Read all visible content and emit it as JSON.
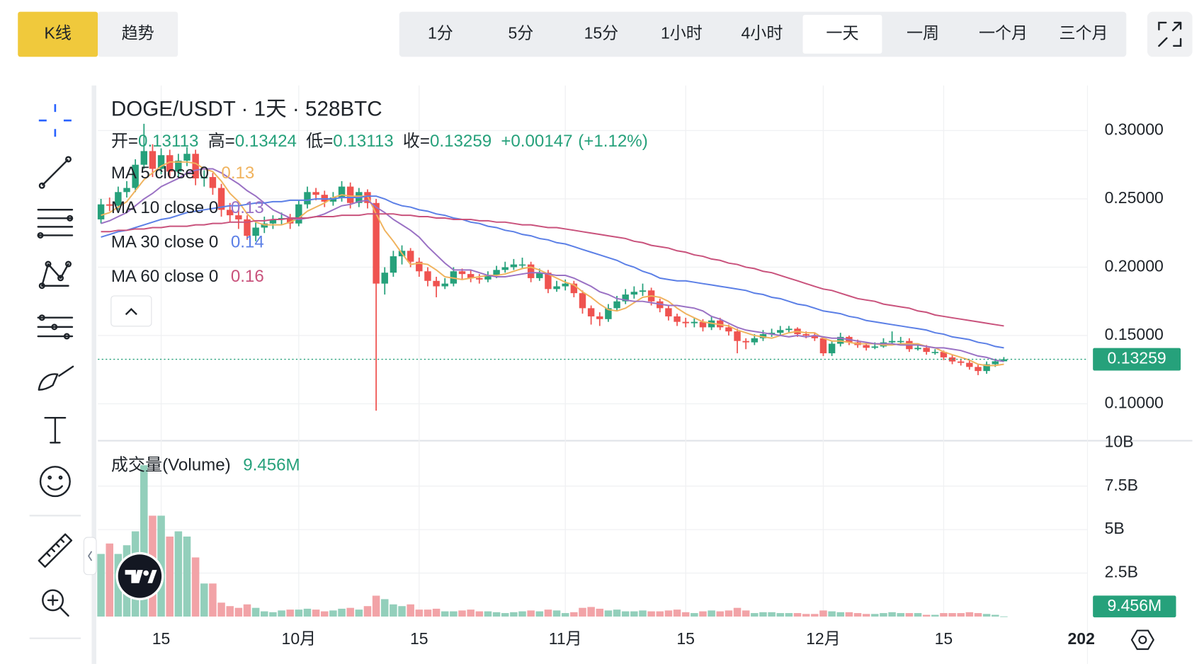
{
  "toolbar": {
    "modes": [
      "K线",
      "趋势"
    ],
    "active_mode": 0,
    "intervals": [
      "1分",
      "5分",
      "15分",
      "1小时",
      "4小时",
      "一天",
      "一周",
      "一个月",
      "三个月"
    ],
    "active_interval": 5
  },
  "chart_data": {
    "type": "candlestick",
    "title": "DOGE/USDT · 1天 · 528BTC",
    "ohlc_labels": [
      "开=",
      "高=",
      "低=",
      "收="
    ],
    "change_label": "+0.00147",
    "change_pct_label": "(+1.12%)",
    "up_color": "#26a17b",
    "down_color": "#ef5350",
    "x": [
      "09-08",
      "09-09",
      "09-10",
      "09-11",
      "09-12",
      "09-13",
      "09-14",
      "09-15",
      "09-16",
      "09-17",
      "09-18",
      "09-19",
      "09-20",
      "09-21",
      "09-22",
      "09-23",
      "09-24",
      "09-25",
      "09-26",
      "09-27",
      "09-28",
      "09-29",
      "09-30",
      "10-01",
      "10-02",
      "10-03",
      "10-04",
      "10-05",
      "10-06",
      "10-07",
      "10-08",
      "10-09",
      "10-10",
      "10-11",
      "10-12",
      "10-13",
      "10-14",
      "10-15",
      "10-16",
      "10-17",
      "10-18",
      "10-19",
      "10-20",
      "10-21",
      "10-22",
      "10-23",
      "10-24",
      "10-25",
      "10-26",
      "10-27",
      "10-28",
      "10-29",
      "10-30",
      "10-31",
      "11-01",
      "11-02",
      "11-03",
      "11-04",
      "11-05",
      "11-06",
      "11-07",
      "11-08",
      "11-09",
      "11-10",
      "11-11",
      "11-12",
      "11-13",
      "11-14",
      "11-15",
      "11-16",
      "11-17",
      "11-18",
      "11-19",
      "11-20",
      "11-21",
      "11-22",
      "11-23",
      "11-24",
      "11-25",
      "11-26",
      "11-27",
      "11-28",
      "11-29",
      "11-30",
      "12-01",
      "12-02",
      "12-03",
      "12-04",
      "12-05",
      "12-06",
      "12-07",
      "12-08",
      "12-09",
      "12-10",
      "12-11",
      "12-12",
      "12-13",
      "12-14",
      "12-15",
      "12-16",
      "12-17",
      "12-18",
      "12-19",
      "12-20",
      "12-21",
      "12-22"
    ],
    "open": [
      0.235,
      0.246,
      0.245,
      0.255,
      0.258,
      0.275,
      0.285,
      0.272,
      0.282,
      0.27,
      0.278,
      0.283,
      0.265,
      0.266,
      0.258,
      0.242,
      0.238,
      0.235,
      0.223,
      0.229,
      0.232,
      0.235,
      0.236,
      0.232,
      0.246,
      0.255,
      0.253,
      0.248,
      0.251,
      0.259,
      0.247,
      0.255,
      0.247,
      0.188,
      0.196,
      0.208,
      0.212,
      0.204,
      0.197,
      0.19,
      0.186,
      0.188,
      0.197,
      0.195,
      0.192,
      0.191,
      0.194,
      0.198,
      0.2,
      0.202,
      0.202,
      0.192,
      0.196,
      0.184,
      0.186,
      0.188,
      0.181,
      0.17,
      0.164,
      0.162,
      0.17,
      0.175,
      0.18,
      0.182,
      0.183,
      0.175,
      0.17,
      0.164,
      0.16,
      0.159,
      0.16,
      0.156,
      0.161,
      0.156,
      0.153,
      0.146,
      0.145,
      0.148,
      0.151,
      0.152,
      0.154,
      0.155,
      0.151,
      0.15,
      0.148,
      0.137,
      0.144,
      0.149,
      0.145,
      0.143,
      0.141,
      0.142,
      0.145,
      0.146,
      0.146,
      0.14,
      0.141,
      0.138,
      0.138,
      0.134,
      0.131,
      0.13,
      0.127,
      0.124,
      0.129,
      0.13113
    ],
    "high": [
      0.25,
      0.251,
      0.259,
      0.263,
      0.279,
      0.305,
      0.29,
      0.287,
      0.286,
      0.283,
      0.288,
      0.286,
      0.271,
      0.269,
      0.261,
      0.247,
      0.242,
      0.238,
      0.233,
      0.237,
      0.238,
      0.24,
      0.239,
      0.249,
      0.259,
      0.258,
      0.256,
      0.255,
      0.263,
      0.262,
      0.258,
      0.257,
      0.25,
      0.2,
      0.212,
      0.216,
      0.214,
      0.207,
      0.2,
      0.193,
      0.192,
      0.2,
      0.199,
      0.198,
      0.195,
      0.197,
      0.201,
      0.204,
      0.206,
      0.207,
      0.204,
      0.199,
      0.198,
      0.19,
      0.191,
      0.19,
      0.183,
      0.172,
      0.167,
      0.173,
      0.179,
      0.184,
      0.186,
      0.188,
      0.185,
      0.177,
      0.172,
      0.166,
      0.163,
      0.163,
      0.162,
      0.164,
      0.163,
      0.158,
      0.155,
      0.148,
      0.151,
      0.154,
      0.155,
      0.157,
      0.157,
      0.156,
      0.153,
      0.152,
      0.149,
      0.146,
      0.152,
      0.15,
      0.147,
      0.145,
      0.145,
      0.148,
      0.153,
      0.149,
      0.148,
      0.143,
      0.143,
      0.14,
      0.139,
      0.136,
      0.133,
      0.132,
      0.129,
      0.131,
      0.133,
      0.13424
    ],
    "low": [
      0.232,
      0.241,
      0.242,
      0.251,
      0.255,
      0.272,
      0.266,
      0.268,
      0.265,
      0.266,
      0.274,
      0.26,
      0.259,
      0.253,
      0.237,
      0.233,
      0.228,
      0.22,
      0.219,
      0.225,
      0.228,
      0.231,
      0.228,
      0.23,
      0.243,
      0.249,
      0.244,
      0.245,
      0.248,
      0.243,
      0.244,
      0.243,
      0.095,
      0.18,
      0.193,
      0.202,
      0.2,
      0.193,
      0.186,
      0.178,
      0.184,
      0.186,
      0.191,
      0.189,
      0.188,
      0.189,
      0.192,
      0.196,
      0.198,
      0.199,
      0.189,
      0.19,
      0.181,
      0.182,
      0.183,
      0.178,
      0.166,
      0.158,
      0.157,
      0.16,
      0.168,
      0.173,
      0.177,
      0.179,
      0.172,
      0.167,
      0.161,
      0.157,
      0.156,
      0.156,
      0.153,
      0.154,
      0.154,
      0.15,
      0.137,
      0.14,
      0.143,
      0.146,
      0.149,
      0.15,
      0.152,
      0.149,
      0.148,
      0.146,
      0.135,
      0.135,
      0.142,
      0.143,
      0.141,
      0.139,
      0.14,
      0.141,
      0.143,
      0.144,
      0.138,
      0.139,
      0.136,
      0.136,
      0.132,
      0.129,
      0.128,
      0.125,
      0.121,
      0.122,
      0.127,
      0.13113
    ],
    "close": [
      0.246,
      0.245,
      0.255,
      0.258,
      0.275,
      0.285,
      0.272,
      0.282,
      0.27,
      0.278,
      0.283,
      0.265,
      0.266,
      0.258,
      0.242,
      0.238,
      0.235,
      0.223,
      0.229,
      0.232,
      0.235,
      0.236,
      0.232,
      0.246,
      0.255,
      0.253,
      0.248,
      0.251,
      0.259,
      0.247,
      0.255,
      0.247,
      0.188,
      0.196,
      0.208,
      0.212,
      0.204,
      0.197,
      0.19,
      0.186,
      0.188,
      0.197,
      0.195,
      0.192,
      0.191,
      0.194,
      0.198,
      0.2,
      0.202,
      0.202,
      0.192,
      0.196,
      0.184,
      0.186,
      0.188,
      0.181,
      0.17,
      0.164,
      0.162,
      0.17,
      0.175,
      0.18,
      0.182,
      0.183,
      0.175,
      0.17,
      0.164,
      0.16,
      0.159,
      0.16,
      0.156,
      0.161,
      0.156,
      0.153,
      0.146,
      0.145,
      0.148,
      0.151,
      0.152,
      0.154,
      0.155,
      0.151,
      0.15,
      0.148,
      0.137,
      0.144,
      0.149,
      0.145,
      0.143,
      0.141,
      0.142,
      0.145,
      0.146,
      0.146,
      0.14,
      0.141,
      0.138,
      0.138,
      0.134,
      0.131,
      0.13,
      0.127,
      0.124,
      0.129,
      0.13113,
      0.13259
    ],
    "ylim": [
      0.0733,
      0.333
    ],
    "yticks": [
      {
        "value": 0.3,
        "label": "0.30000"
      },
      {
        "value": 0.25,
        "label": "0.25000"
      },
      {
        "value": 0.2,
        "label": "0.20000"
      },
      {
        "value": 0.15,
        "label": "0.15000"
      },
      {
        "value": 0.1,
        "label": "0.10000"
      }
    ],
    "xticks": [
      {
        "value": "09-15",
        "label": "15"
      },
      {
        "value": "10-01",
        "label": "10月"
      },
      {
        "value": "10-15",
        "label": "15"
      },
      {
        "value": "11-01",
        "label": "11月"
      },
      {
        "value": "11-15",
        "label": "15"
      },
      {
        "value": "12-01",
        "label": "12月"
      },
      {
        "value": "12-15",
        "label": "15"
      },
      {
        "value": "01-01",
        "label": "202"
      }
    ],
    "grid": true,
    "moving_averages": [
      {
        "name": "MA 5 close 0",
        "color": "#f0b35e",
        "value_label": "0.13",
        "values": [
          0.238,
          0.24,
          0.244,
          0.248,
          0.256,
          0.264,
          0.269,
          0.274,
          0.277,
          0.277,
          0.277,
          0.276,
          0.272,
          0.27,
          0.263,
          0.254,
          0.248,
          0.239,
          0.233,
          0.231,
          0.231,
          0.231,
          0.233,
          0.236,
          0.241,
          0.244,
          0.247,
          0.251,
          0.253,
          0.252,
          0.252,
          0.252,
          0.239,
          0.227,
          0.219,
          0.21,
          0.202,
          0.203,
          0.202,
          0.198,
          0.193,
          0.192,
          0.191,
          0.192,
          0.193,
          0.194,
          0.194,
          0.195,
          0.197,
          0.199,
          0.2,
          0.198,
          0.195,
          0.192,
          0.189,
          0.187,
          0.182,
          0.178,
          0.173,
          0.169,
          0.168,
          0.17,
          0.174,
          0.178,
          0.179,
          0.178,
          0.175,
          0.17,
          0.166,
          0.163,
          0.16,
          0.159,
          0.158,
          0.157,
          0.154,
          0.152,
          0.15,
          0.149,
          0.148,
          0.15,
          0.152,
          0.153,
          0.152,
          0.152,
          0.148,
          0.146,
          0.146,
          0.145,
          0.144,
          0.144,
          0.144,
          0.143,
          0.143,
          0.144,
          0.144,
          0.144,
          0.142,
          0.141,
          0.138,
          0.136,
          0.134,
          0.132,
          0.129,
          0.128,
          0.128,
          0.129
        ]
      },
      {
        "name": "MA 10 close 0",
        "color": "#9a71c4",
        "value_label": "0.13",
        "values": [
          0.232,
          0.234,
          0.237,
          0.24,
          0.245,
          0.25,
          0.254,
          0.259,
          0.262,
          0.265,
          0.269,
          0.271,
          0.272,
          0.272,
          0.269,
          0.265,
          0.261,
          0.256,
          0.252,
          0.247,
          0.242,
          0.239,
          0.236,
          0.235,
          0.236,
          0.237,
          0.239,
          0.242,
          0.245,
          0.246,
          0.248,
          0.249,
          0.244,
          0.24,
          0.235,
          0.231,
          0.227,
          0.222,
          0.215,
          0.209,
          0.203,
          0.198,
          0.198,
          0.198,
          0.196,
          0.194,
          0.193,
          0.193,
          0.194,
          0.195,
          0.196,
          0.196,
          0.195,
          0.194,
          0.194,
          0.192,
          0.189,
          0.186,
          0.182,
          0.18,
          0.177,
          0.176,
          0.175,
          0.175,
          0.174,
          0.173,
          0.172,
          0.172,
          0.171,
          0.17,
          0.168,
          0.164,
          0.162,
          0.159,
          0.156,
          0.154,
          0.153,
          0.152,
          0.151,
          0.15,
          0.149,
          0.15,
          0.149,
          0.15,
          0.149,
          0.148,
          0.148,
          0.147,
          0.146,
          0.145,
          0.144,
          0.144,
          0.144,
          0.143,
          0.143,
          0.143,
          0.142,
          0.141,
          0.141,
          0.14,
          0.139,
          0.137,
          0.135,
          0.134,
          0.132,
          0.131
        ]
      },
      {
        "name": "MA 30 close 0",
        "color": "#5b7fe6",
        "value_label": "0.14",
        "values": [
          0.222,
          0.224,
          0.226,
          0.227,
          0.229,
          0.231,
          0.233,
          0.235,
          0.236,
          0.238,
          0.24,
          0.241,
          0.242,
          0.243,
          0.244,
          0.245,
          0.245,
          0.246,
          0.247,
          0.247,
          0.248,
          0.248,
          0.249,
          0.249,
          0.249,
          0.25,
          0.25,
          0.25,
          0.251,
          0.251,
          0.251,
          0.252,
          0.252,
          0.25,
          0.247,
          0.245,
          0.244,
          0.242,
          0.241,
          0.239,
          0.238,
          0.236,
          0.235,
          0.233,
          0.232,
          0.23,
          0.229,
          0.227,
          0.226,
          0.224,
          0.223,
          0.221,
          0.22,
          0.218,
          0.217,
          0.215,
          0.213,
          0.211,
          0.209,
          0.207,
          0.205,
          0.202,
          0.2,
          0.197,
          0.195,
          0.192,
          0.191,
          0.19,
          0.19,
          0.189,
          0.188,
          0.187,
          0.186,
          0.185,
          0.184,
          0.183,
          0.181,
          0.18,
          0.178,
          0.177,
          0.175,
          0.173,
          0.172,
          0.17,
          0.168,
          0.167,
          0.166,
          0.164,
          0.163,
          0.161,
          0.16,
          0.159,
          0.158,
          0.157,
          0.156,
          0.155,
          0.154,
          0.152,
          0.151,
          0.149,
          0.148,
          0.147,
          0.145,
          0.144,
          0.142,
          0.141
        ]
      },
      {
        "name": "MA 60 close 0",
        "color": "#c9527c",
        "value_label": "0.16",
        "values": [
          0.226,
          0.226,
          0.227,
          0.227,
          0.228,
          0.228,
          0.229,
          0.229,
          0.23,
          0.23,
          0.23,
          0.231,
          0.231,
          0.232,
          0.232,
          0.233,
          0.233,
          0.233,
          0.234,
          0.234,
          0.235,
          0.235,
          0.236,
          0.236,
          0.236,
          0.237,
          0.237,
          0.237,
          0.238,
          0.238,
          0.238,
          0.239,
          0.239,
          0.239,
          0.239,
          0.238,
          0.238,
          0.237,
          0.237,
          0.236,
          0.236,
          0.235,
          0.235,
          0.235,
          0.234,
          0.234,
          0.233,
          0.233,
          0.232,
          0.231,
          0.231,
          0.23,
          0.229,
          0.229,
          0.228,
          0.227,
          0.226,
          0.225,
          0.224,
          0.223,
          0.222,
          0.221,
          0.219,
          0.218,
          0.216,
          0.215,
          0.214,
          0.212,
          0.211,
          0.209,
          0.208,
          0.206,
          0.205,
          0.203,
          0.202,
          0.2,
          0.199,
          0.197,
          0.196,
          0.194,
          0.192,
          0.19,
          0.188,
          0.186,
          0.184,
          0.183,
          0.181,
          0.179,
          0.177,
          0.176,
          0.175,
          0.173,
          0.172,
          0.171,
          0.17,
          0.168,
          0.167,
          0.165,
          0.164,
          0.163,
          0.162,
          0.161,
          0.16,
          0.159,
          0.158,
          0.157
        ]
      }
    ],
    "volume": {
      "name": "成交量(Volume)",
      "last_label": "9.456M",
      "up_color": "#93cfbb",
      "down_color": "#f2a3a7",
      "ylim": [
        0,
        10
      ],
      "yticks": [
        {
          "value": 10,
          "label": "10B"
        },
        {
          "value": 7.5,
          "label": "7.5B"
        },
        {
          "value": 5,
          "label": "5B"
        },
        {
          "value": 2.5,
          "label": "2.5B"
        }
      ],
      "values": [
        3.6,
        4.2,
        3.6,
        4.1,
        4.9,
        8.7,
        5.8,
        5.8,
        4.6,
        4.9,
        4.6,
        3.4,
        1.9,
        1.9,
        0.8,
        0.6,
        0.5,
        0.7,
        0.5,
        0.3,
        0.25,
        0.35,
        0.4,
        0.4,
        0.45,
        0.4,
        0.3,
        0.35,
        0.45,
        0.5,
        0.4,
        0.6,
        1.2,
        1.0,
        0.7,
        0.6,
        0.7,
        0.4,
        0.4,
        0.45,
        0.3,
        0.3,
        0.35,
        0.4,
        0.3,
        0.3,
        0.25,
        0.2,
        0.25,
        0.3,
        0.35,
        0.3,
        0.4,
        0.35,
        0.2,
        0.25,
        0.5,
        0.55,
        0.45,
        0.35,
        0.4,
        0.3,
        0.3,
        0.35,
        0.3,
        0.3,
        0.35,
        0.4,
        0.25,
        0.2,
        0.3,
        0.35,
        0.3,
        0.35,
        0.5,
        0.35,
        0.2,
        0.25,
        0.25,
        0.2,
        0.2,
        0.2,
        0.15,
        0.15,
        0.35,
        0.3,
        0.25,
        0.25,
        0.2,
        0.15,
        0.15,
        0.2,
        0.25,
        0.2,
        0.2,
        0.2,
        0.1,
        0.1,
        0.2,
        0.2,
        0.2,
        0.25,
        0.2,
        0.15,
        0.1,
        0.009456
      ]
    }
  }
}
